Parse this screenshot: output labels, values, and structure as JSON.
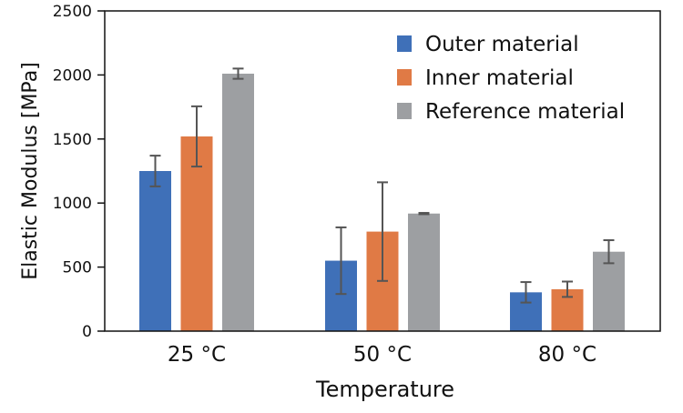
{
  "chart_data": {
    "type": "bar",
    "title": "",
    "xlabel": "Temperature",
    "ylabel": "Elastic Modulus [MPa]",
    "categories": [
      "25 °C",
      "50 °C",
      "80 °C"
    ],
    "ylim": [
      0,
      2500
    ],
    "yticks": [
      "0",
      "500",
      "1000",
      "1500",
      "2000",
      "2500"
    ],
    "grid": false,
    "legend_position": "top-right",
    "series": [
      {
        "name": "Outer material",
        "color": "#3f70b8",
        "values": [
          1250,
          550,
          303
        ],
        "errors": [
          120,
          260,
          80
        ]
      },
      {
        "name": "Inner material",
        "color": "#e07a45",
        "values": [
          1520,
          777,
          327
        ],
        "errors": [
          235,
          385,
          60
        ]
      },
      {
        "name": "Reference material",
        "color": "#9d9fa2",
        "values": [
          2010,
          918,
          620
        ],
        "errors": [
          40,
          5,
          90
        ]
      }
    ]
  }
}
